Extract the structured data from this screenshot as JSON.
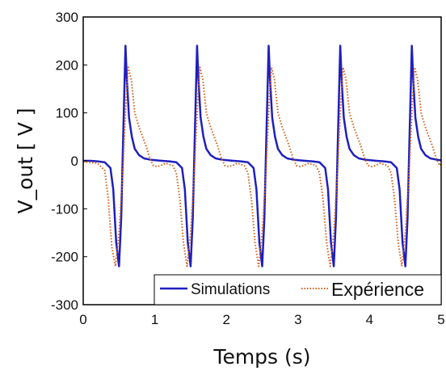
{
  "chart_data": {
    "type": "line",
    "xlabel": "Temps (s)",
    "ylabel": "V_out [ V ]",
    "xlim": [
      0,
      5
    ],
    "ylim": [
      -300,
      300
    ],
    "xticks": [
      0,
      1,
      2,
      3,
      4,
      5
    ],
    "yticks": [
      -300,
      -200,
      -100,
      0,
      100,
      200,
      300
    ],
    "grid": false,
    "legend_position": "bottom-right",
    "series": [
      {
        "name": "Simulations",
        "color": "#1f1fbf",
        "style": "solid",
        "x": [
          0,
          0.1,
          0.2,
          0.3,
          0.38,
          0.42,
          0.46,
          0.5,
          0.53,
          0.56,
          0.59,
          0.61,
          0.64,
          0.68,
          0.72,
          0.78,
          0.85,
          0.95,
          1.1,
          1.2,
          1.3,
          1.38,
          1.42,
          1.46,
          1.5,
          1.53,
          1.56,
          1.59,
          1.61,
          1.64,
          1.68,
          1.72,
          1.78,
          1.85,
          1.95,
          2.1,
          2.2,
          2.3,
          2.38,
          2.42,
          2.46,
          2.5,
          2.53,
          2.56,
          2.59,
          2.61,
          2.64,
          2.68,
          2.72,
          2.78,
          2.85,
          2.95,
          3.1,
          3.2,
          3.3,
          3.38,
          3.42,
          3.46,
          3.5,
          3.53,
          3.56,
          3.59,
          3.61,
          3.64,
          3.68,
          3.72,
          3.78,
          3.85,
          3.95,
          4.1,
          4.2,
          4.3,
          4.38,
          4.42,
          4.46,
          4.5,
          4.53,
          4.56,
          4.59,
          4.61,
          4.64,
          4.68,
          4.72,
          4.78,
          4.85,
          4.95,
          5.0
        ],
        "y": [
          0,
          0,
          -1,
          -3,
          -15,
          -60,
          -170,
          -220,
          -120,
          60,
          240,
          170,
          90,
          50,
          25,
          12,
          5,
          2,
          0,
          -1,
          -3,
          -15,
          -60,
          -170,
          -220,
          -120,
          60,
          240,
          170,
          90,
          50,
          25,
          12,
          5,
          2,
          0,
          -1,
          -3,
          -15,
          -60,
          -170,
          -220,
          -120,
          60,
          240,
          170,
          90,
          50,
          25,
          12,
          5,
          2,
          0,
          -1,
          -3,
          -15,
          -60,
          -170,
          -220,
          -120,
          60,
          240,
          170,
          90,
          50,
          25,
          12,
          5,
          2,
          0,
          -1,
          -3,
          -15,
          -60,
          -170,
          -220,
          -120,
          60,
          240,
          170,
          90,
          50,
          25,
          12,
          5,
          2,
          1
        ]
      },
      {
        "name": "Expérience",
        "color": "#d0601a",
        "style": "dotted",
        "x": [
          0,
          0.2,
          0.3,
          0.35,
          0.4,
          0.45,
          0.5,
          0.55,
          0.6,
          0.63,
          0.67,
          0.72,
          0.78,
          0.83,
          0.88,
          0.93,
          0.98,
          1.03,
          1.08,
          1.15,
          1.25,
          1.3,
          1.35,
          1.4,
          1.45,
          1.5,
          1.55,
          1.6,
          1.63,
          1.67,
          1.72,
          1.78,
          1.83,
          1.88,
          1.93,
          1.98,
          2.03,
          2.08,
          2.15,
          2.25,
          2.3,
          2.35,
          2.4,
          2.45,
          2.5,
          2.55,
          2.6,
          2.63,
          2.67,
          2.72,
          2.78,
          2.83,
          2.88,
          2.93,
          2.98,
          3.03,
          3.08,
          3.15,
          3.25,
          3.3,
          3.35,
          3.4,
          3.45,
          3.5,
          3.55,
          3.6,
          3.63,
          3.67,
          3.72,
          3.78,
          3.83,
          3.88,
          3.93,
          3.98,
          4.03,
          4.08,
          4.15,
          4.25,
          4.3,
          4.35,
          4.4,
          4.45,
          4.5,
          4.55,
          4.6,
          4.63,
          4.67,
          4.72,
          4.78,
          4.83,
          4.88,
          4.93,
          4.98,
          5.0
        ],
        "y": [
          -2,
          -5,
          -20,
          -80,
          -180,
          -220,
          -150,
          -30,
          130,
          195,
          170,
          100,
          70,
          50,
          30,
          5,
          -10,
          -12,
          -10,
          -5,
          -10,
          -25,
          -80,
          -170,
          -220,
          -150,
          -30,
          130,
          195,
          170,
          100,
          70,
          50,
          30,
          5,
          -10,
          -12,
          -10,
          -5,
          -10,
          -25,
          -80,
          -170,
          -220,
          -150,
          -30,
          130,
          195,
          170,
          100,
          70,
          50,
          30,
          5,
          -10,
          -12,
          -10,
          -5,
          -10,
          -25,
          -80,
          -170,
          -220,
          -150,
          -30,
          130,
          195,
          170,
          100,
          70,
          50,
          30,
          5,
          -10,
          -12,
          -10,
          -5,
          -10,
          -25,
          -80,
          -170,
          -220,
          -150,
          -30,
          130,
          195,
          170,
          100,
          70,
          50,
          30,
          5,
          -10,
          -5
        ]
      }
    ]
  }
}
